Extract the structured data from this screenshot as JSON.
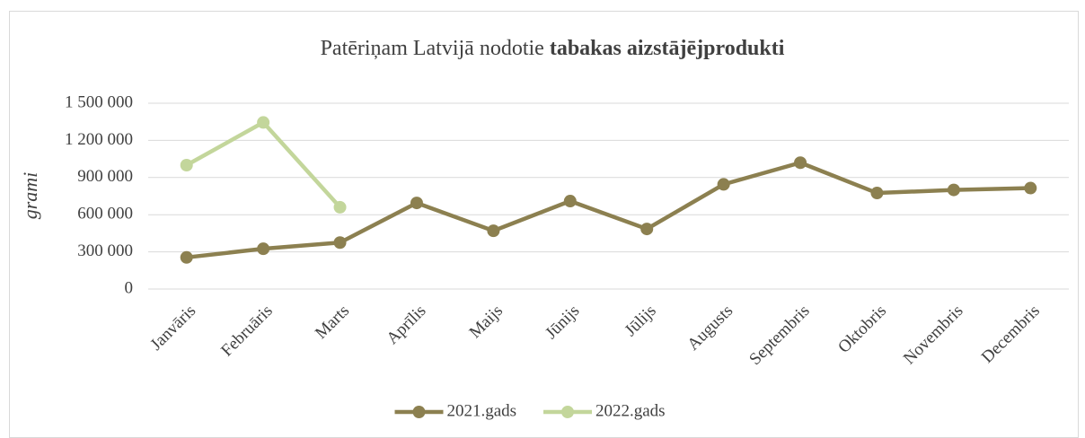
{
  "chart_data": {
    "type": "line",
    "title": [
      "Patēriņam Latvijā nodotie",
      "tabakas aizstājējprodukti"
    ],
    "y_label": "grami",
    "categories": [
      "Janvāris",
      "Februāris",
      "Marts",
      "Aprīlis",
      "Maijs",
      "Jūnijs",
      "Jūlijs",
      "Augusts",
      "Septembris",
      "Oktobris",
      "Novembris",
      "Decembris"
    ],
    "series": [
      {
        "name": "2021.gads",
        "color": "#8c8050",
        "values": [
          255000,
          325000,
          375000,
          695000,
          470000,
          710000,
          485000,
          845000,
          1020000,
          775000,
          800000,
          815000
        ]
      },
      {
        "name": "2022.gads",
        "color": "#c3d69b",
        "values": [
          1000000,
          1345000,
          660000,
          null,
          null,
          null,
          null,
          null,
          null,
          null,
          null,
          null
        ]
      }
    ],
    "ylim": [
      0,
      1500000
    ],
    "yticks": [
      0,
      {
        "value": 300000,
        "label": "300 000"
      },
      {
        "value": 600000,
        "label": "600 000"
      },
      {
        "value": 900000,
        "label": "900 000"
      },
      {
        "value": 1200000,
        "label": "1 200 000"
      },
      {
        "value": 1500000,
        "label": "1 500 000"
      }
    ],
    "grid": true,
    "legend": "bottom"
  }
}
